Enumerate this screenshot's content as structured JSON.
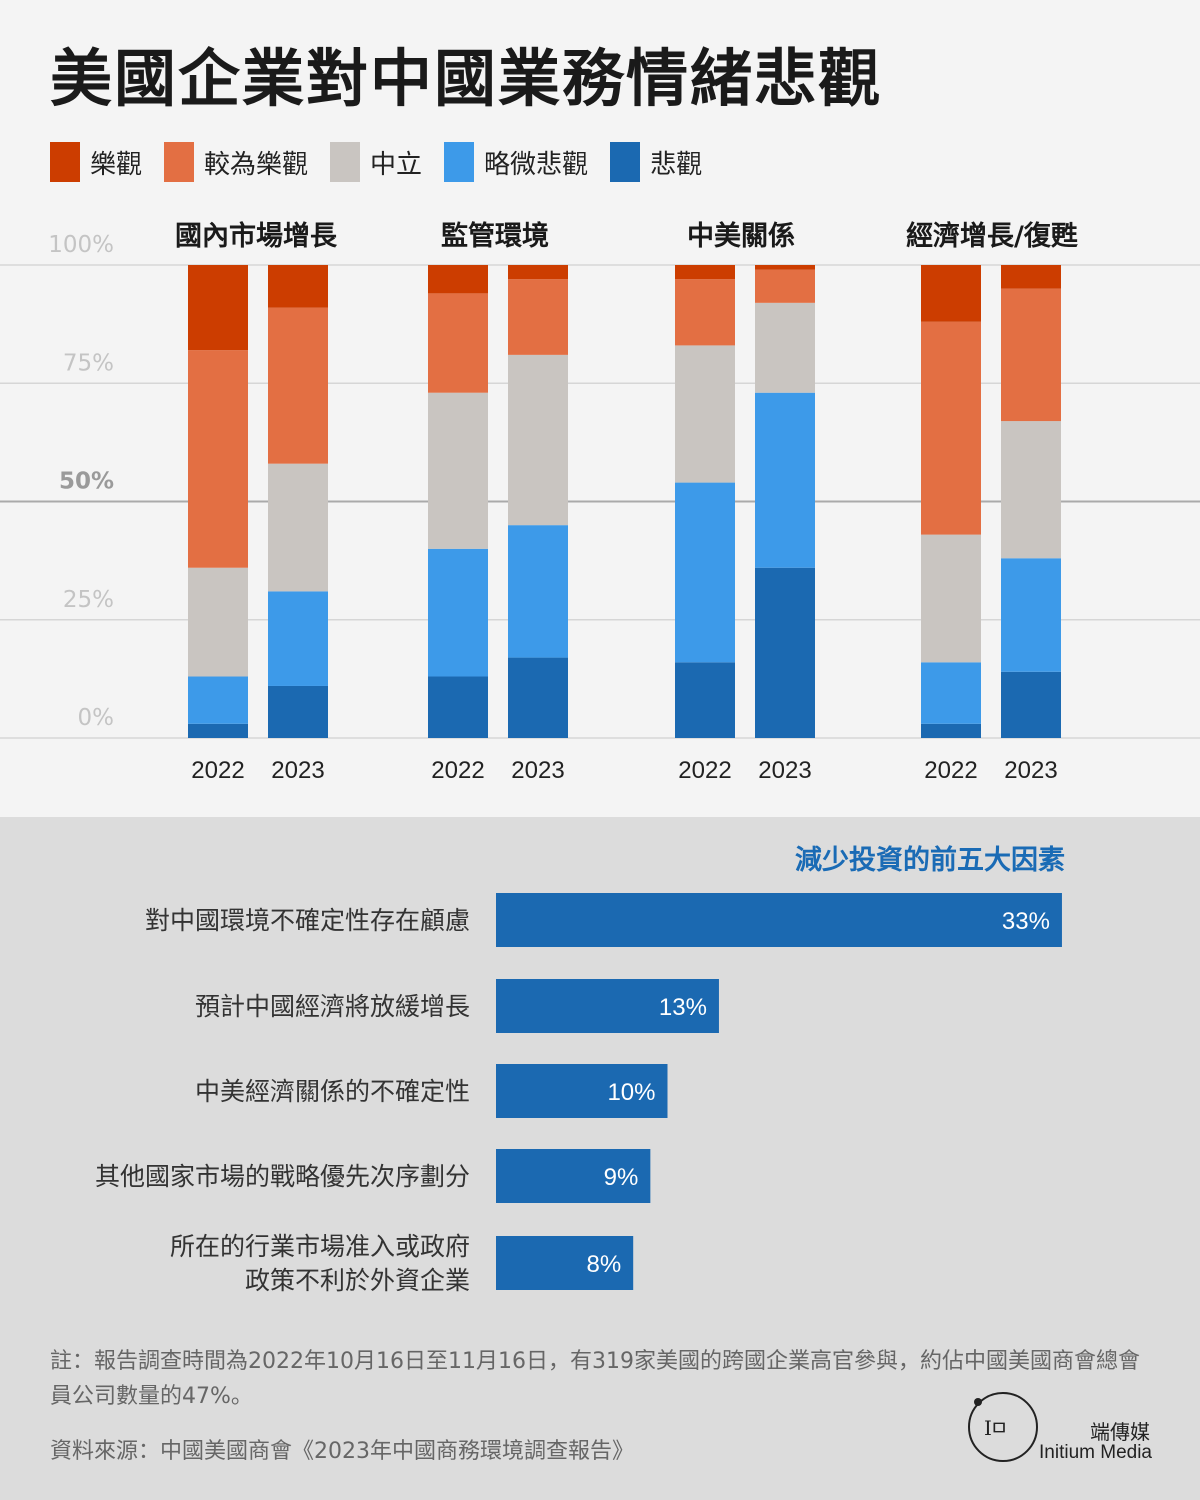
{
  "title": "美國企業對中國業務情緒悲觀",
  "legend": [
    {
      "label": "樂觀",
      "color": "#cc3d00"
    },
    {
      "label": "較為樂觀",
      "color": "#e36f43"
    },
    {
      "label": "中立",
      "color": "#c9c5c1"
    },
    {
      "label": "略微悲觀",
      "color": "#3d9ae9"
    },
    {
      "label": "悲觀",
      "color": "#1b69b1"
    }
  ],
  "chart_data": [
    {
      "type": "bar",
      "stacked": true,
      "orientation": "vertical",
      "y_ticks": [
        "0%",
        "25%",
        "50%",
        "75%",
        "100%"
      ],
      "ylim": [
        0,
        100
      ],
      "grid": true,
      "series_order": [
        "悲觀",
        "略微悲觀",
        "中立",
        "較為樂觀",
        "樂觀"
      ],
      "groups": [
        {
          "title": "國內市場增長",
          "bars": [
            {
              "year": "2022",
              "values": [
                3,
                10,
                23,
                46,
                18
              ]
            },
            {
              "year": "2023",
              "values": [
                11,
                20,
                27,
                33,
                9
              ]
            }
          ]
        },
        {
          "title": "監管環境",
          "bars": [
            {
              "year": "2022",
              "values": [
                13,
                27,
                33,
                21,
                6
              ]
            },
            {
              "year": "2023",
              "values": [
                17,
                28,
                36,
                16,
                3
              ]
            }
          ]
        },
        {
          "title": "中美關係",
          "bars": [
            {
              "year": "2022",
              "values": [
                16,
                38,
                29,
                14,
                3
              ]
            },
            {
              "year": "2023",
              "values": [
                36,
                37,
                19,
                7,
                1
              ]
            }
          ]
        },
        {
          "title": "經濟增長/復甦",
          "bars": [
            {
              "year": "2022",
              "values": [
                3,
                13,
                27,
                45,
                12
              ]
            },
            {
              "year": "2023",
              "values": [
                14,
                24,
                29,
                28,
                5
              ]
            }
          ]
        }
      ]
    },
    {
      "type": "bar",
      "orientation": "horizontal",
      "title": "減少投資的前五大因素",
      "color": "#1b69b1",
      "items": [
        {
          "lines": [
            "對中國環境不確定性存在顧慮"
          ],
          "value": 33,
          "label": "33%"
        },
        {
          "lines": [
            "預計中國經濟將放緩增長"
          ],
          "value": 13,
          "label": "13%"
        },
        {
          "lines": [
            "中美經濟關係的不確定性"
          ],
          "value": 10,
          "label": "10%"
        },
        {
          "lines": [
            "其他國家市場的戰略優先次序劃分"
          ],
          "value": 9,
          "label": "9%"
        },
        {
          "lines": [
            "所在的行業市場准入或政府",
            "政策不利於外資企業"
          ],
          "value": 8,
          "label": "8%"
        }
      ]
    }
  ],
  "notes": "註：報告調查時間為2022年10月16日至11月16日，有319家美國的跨國企業高官參與，約佔中國美國商會總會員公司數量的47%。",
  "source": "資料來源：中國美國商會《2023年中國商務環境調查報告》",
  "logo": {
    "glyph": "Iㅁ",
    "cn": "端傳媒",
    "en": "Initium Media"
  }
}
